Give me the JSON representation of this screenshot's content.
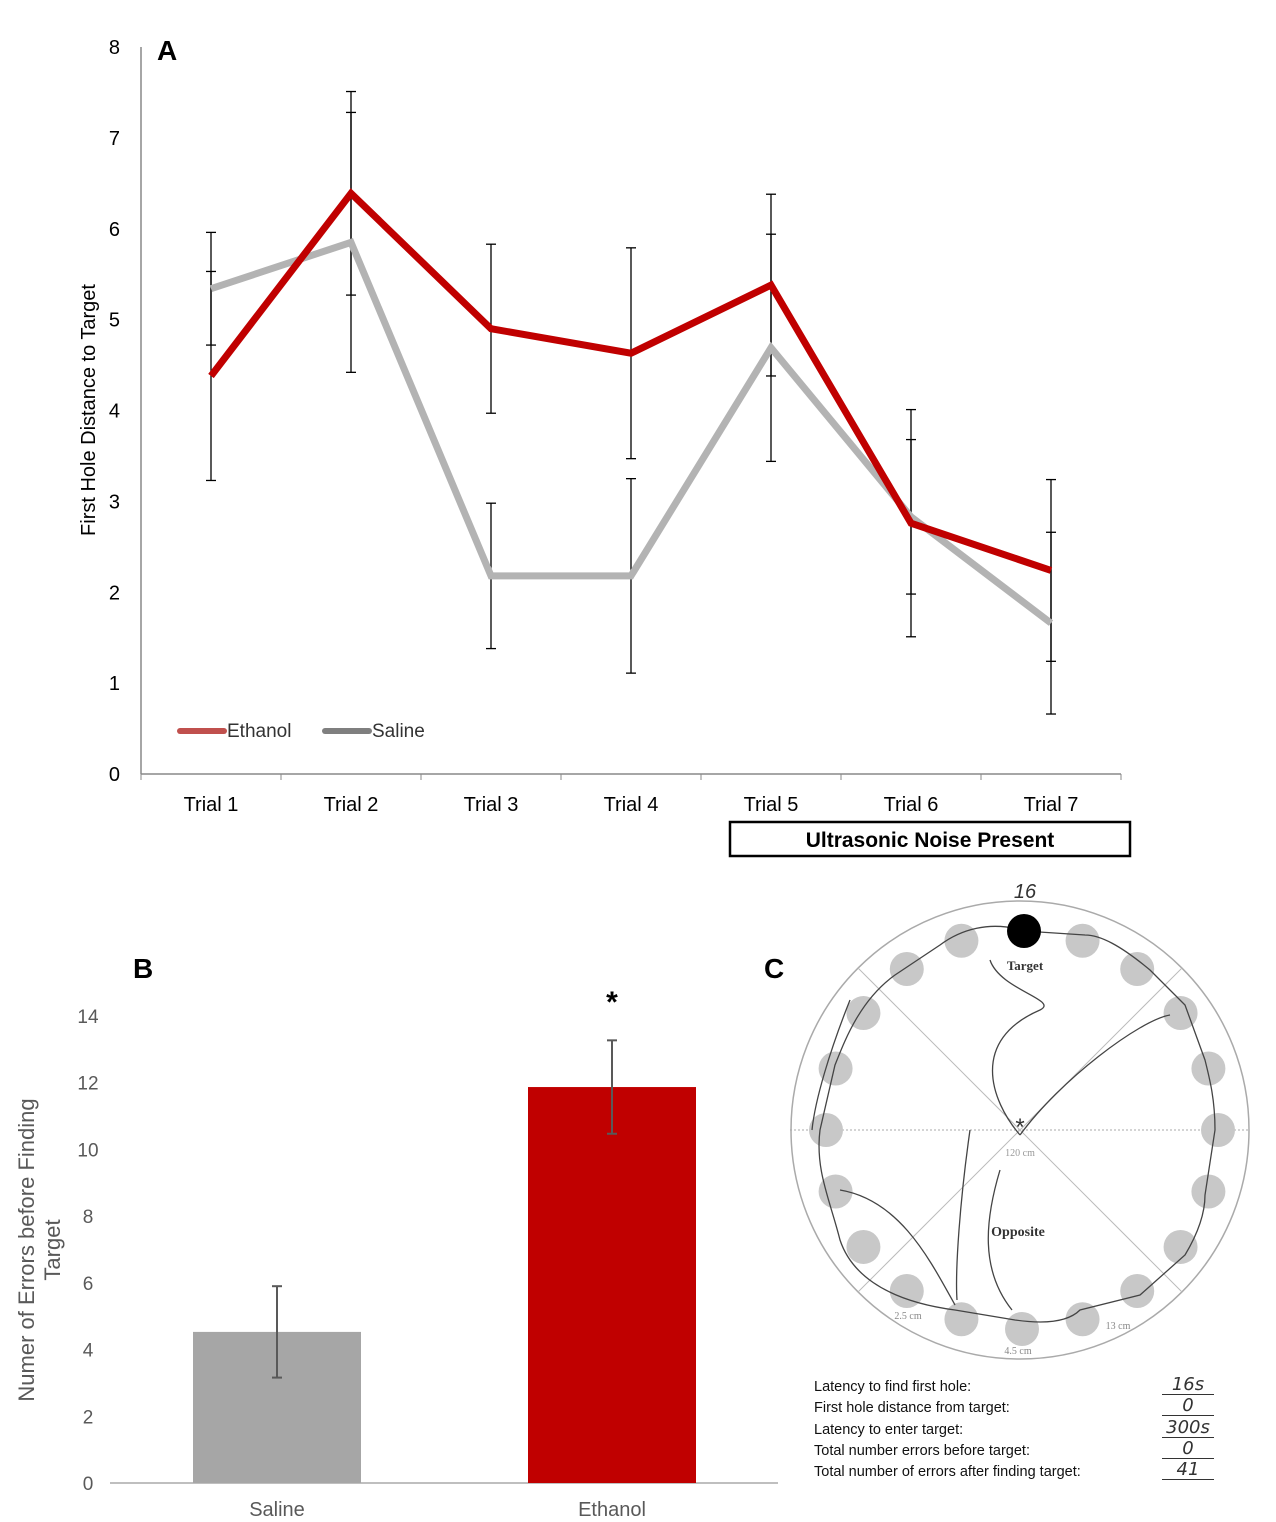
{
  "chart_data": [
    {
      "panel": "A",
      "type": "line",
      "ylabel": "First Hole Distance to Target",
      "xlabel": "",
      "ylim": [
        0,
        8
      ],
      "yticks": [
        0,
        1,
        2,
        3,
        4,
        5,
        6,
        7,
        8
      ],
      "categories": [
        "Trial 1",
        "Trial 2",
        "Trial 3",
        "Trial 4",
        "Trial 5",
        "Trial 6",
        "Trial 7"
      ],
      "series": [
        {
          "name": "Ethanol",
          "color": "#c00000",
          "values": [
            4.38,
            6.39,
            4.9,
            4.63,
            5.38,
            2.76,
            2.24
          ],
          "errors": [
            1.15,
            1.12,
            0.93,
            1.16,
            1.0,
            1.25,
            1.0
          ]
        },
        {
          "name": "Saline",
          "color": "#b3b3b3",
          "values": [
            5.34,
            5.85,
            2.18,
            2.18,
            4.69,
            2.83,
            1.66
          ],
          "errors": [
            0.62,
            1.43,
            0.8,
            1.07,
            1.25,
            0.85,
            1.0
          ]
        }
      ],
      "legend": "bottom-left",
      "annotation": "Ultrasonic Noise Present",
      "annotation_span": [
        "Trial 5",
        "Trial 7"
      ]
    },
    {
      "panel": "B",
      "type": "bar",
      "ylabel": "Numer of Errors before Finding Target",
      "ylim": [
        0,
        14
      ],
      "yticks": [
        0,
        2,
        4,
        6,
        8,
        10,
        12,
        14
      ],
      "categories": [
        "Saline",
        "Ethanol"
      ],
      "values": [
        4.53,
        11.87
      ],
      "errors": [
        1.37,
        1.4
      ],
      "colors": [
        "#a6a6a6",
        "#c00000"
      ],
      "significance": [
        "",
        "*"
      ]
    }
  ],
  "panel_c": {
    "label": "C",
    "handwritten_count": "16",
    "target_label": "Target",
    "opposite_label": "Opposite",
    "diameter_label": "120 cm",
    "dims": [
      "2.5 cm",
      "4.5 cm",
      "13 cm"
    ],
    "info_rows": [
      {
        "label": "Latency to find first hole:",
        "value": "16s"
      },
      {
        "label": "First hole distance from target:",
        "value": "0"
      },
      {
        "label": "Latency to enter target:",
        "value": "300s"
      },
      {
        "label": "Total number errors before target:",
        "value": "0"
      },
      {
        "label": "Total number of errors after finding target:",
        "value": "41"
      }
    ]
  }
}
